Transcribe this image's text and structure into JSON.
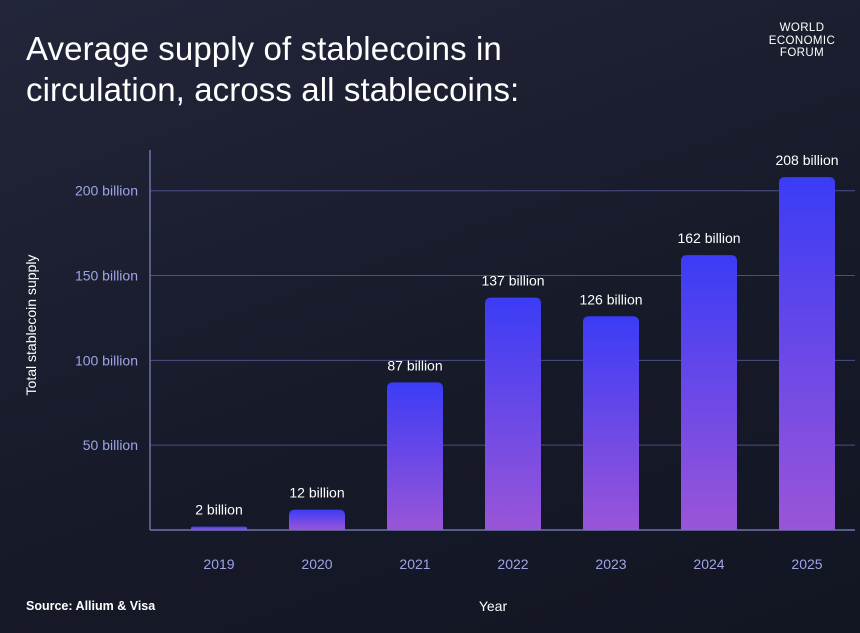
{
  "title": "Average supply of stablecoins in circulation, across all stablecoins:",
  "logo": [
    "WORLD",
    "ECONOMIC",
    "FORUM"
  ],
  "source": "Source: Allium & Visa",
  "colors": {
    "bar_top": "#3b3cf6",
    "bar_bottom": "#9a55d8",
    "grid": "#4a4f86",
    "axis": "#7f86c9",
    "tick_text": "#9ea4e6"
  },
  "chart_data": {
    "type": "bar",
    "title": "Average supply of stablecoins in circulation, across all stablecoins:",
    "xlabel": "Year",
    "ylabel": "Total stablecoin supply",
    "categories": [
      "2019",
      "2020",
      "2021",
      "2022",
      "2023",
      "2024",
      "2025"
    ],
    "values": [
      2,
      12,
      87,
      137,
      126,
      162,
      208
    ],
    "data_labels": [
      "2 billion",
      "12 billion",
      "87 billion",
      "137 billion",
      "126 billion",
      "162 billion",
      "208 billion"
    ],
    "yticks": [
      50,
      100,
      150,
      200
    ],
    "ytick_labels": [
      "50 billion",
      "100 billion",
      "150 billion",
      "200 billion"
    ],
    "ylim": [
      0,
      224
    ],
    "unit": "billion",
    "grid": true
  }
}
